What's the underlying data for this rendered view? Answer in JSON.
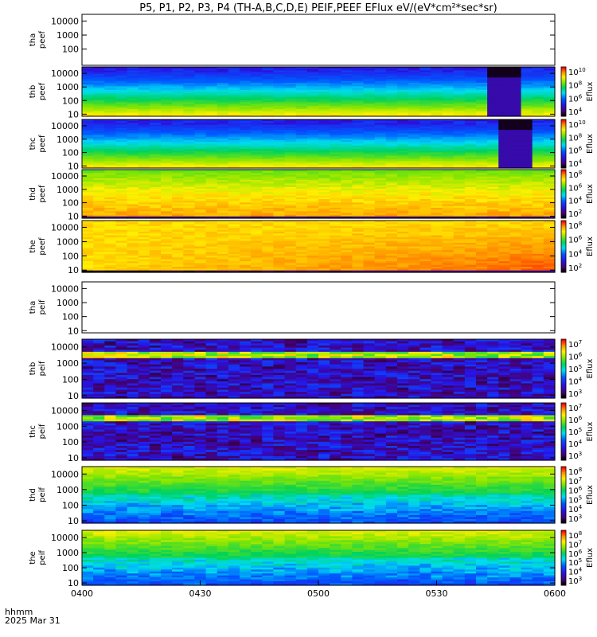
{
  "title": "P5, P1, P2, P3, P4 (TH-A,B,C,D,E) PEIF,PEEF EFlux eV/(eV*cm²*sec*sr)",
  "x_axis": {
    "label_line1": "hhmm",
    "label_line2": "2025 Mar 31",
    "ticks": [
      "0400",
      "0430",
      "0500",
      "0530",
      "0600"
    ]
  },
  "colorbar_label": "Eflux",
  "chart_data": [
    {
      "type": "heatmap",
      "name": "tha peef",
      "ylabel": [
        "tha",
        "peef"
      ],
      "yscale": "log",
      "ylim": [
        7,
        30000
      ],
      "yticks": [
        "10000",
        "1000",
        "100"
      ],
      "data_present": false,
      "colorbar": null
    },
    {
      "type": "heatmap",
      "name": "thb peef",
      "ylabel": [
        "thb",
        "peef"
      ],
      "yscale": "log",
      "ylim": [
        7,
        30000
      ],
      "yticks": [
        "10000",
        "1000",
        "100",
        "10"
      ],
      "data_present": true,
      "pattern": "electron-quiet",
      "gap_start_min": 103,
      "gap_end_min": 110,
      "colorbar": {
        "ticks": [
          {
            "base": "10",
            "exp": "10"
          },
          {
            "base": "10",
            "exp": "8"
          },
          {
            "base": "10",
            "exp": "6"
          },
          {
            "base": "10",
            "exp": "4"
          }
        ]
      }
    },
    {
      "type": "heatmap",
      "name": "thc peef",
      "ylabel": [
        "thc",
        "peef"
      ],
      "yscale": "log",
      "ylim": [
        7,
        30000
      ],
      "yticks": [
        "10000",
        "1000",
        "100",
        "10"
      ],
      "data_present": true,
      "pattern": "electron-quiet",
      "gap_start_min": 107,
      "gap_end_min": 114,
      "colorbar": {
        "ticks": [
          {
            "base": "10",
            "exp": "10"
          },
          {
            "base": "10",
            "exp": "8"
          },
          {
            "base": "10",
            "exp": "6"
          },
          {
            "base": "10",
            "exp": "4"
          }
        ]
      }
    },
    {
      "type": "heatmap",
      "name": "thd peef",
      "ylabel": [
        "thd",
        "peef"
      ],
      "yscale": "log",
      "ylim": [
        7,
        30000
      ],
      "yticks": [
        "10000",
        "1000",
        "100",
        "10"
      ],
      "data_present": true,
      "pattern": "electron-hot",
      "colorbar": {
        "ticks": [
          {
            "base": "10",
            "exp": "8"
          },
          {
            "base": "10",
            "exp": "6"
          },
          {
            "base": "10",
            "exp": "4"
          },
          {
            "base": "10",
            "exp": "2"
          }
        ]
      }
    },
    {
      "type": "heatmap",
      "name": "the peef",
      "ylabel": [
        "the",
        "peef"
      ],
      "yscale": "log",
      "ylim": [
        7,
        30000
      ],
      "yticks": [
        "10000",
        "1000",
        "100",
        "10"
      ],
      "data_present": true,
      "pattern": "electron-hotter",
      "colorbar": {
        "ticks": [
          {
            "base": "10",
            "exp": "8"
          },
          {
            "base": "10",
            "exp": "6"
          },
          {
            "base": "10",
            "exp": "4"
          },
          {
            "base": "10",
            "exp": "2"
          }
        ]
      }
    },
    {
      "type": "heatmap",
      "name": "tha peif",
      "ylabel": [
        "tha",
        "peif"
      ],
      "yscale": "log",
      "ylim": [
        7,
        30000
      ],
      "yticks": [
        "10000",
        "1000",
        "100",
        "10"
      ],
      "data_present": false,
      "colorbar": null
    },
    {
      "type": "heatmap",
      "name": "thb peif",
      "ylabel": [
        "thb",
        "peif"
      ],
      "yscale": "log",
      "ylim": [
        7,
        30000
      ],
      "yticks": [
        "10000",
        "1000",
        "100",
        "10"
      ],
      "data_present": true,
      "pattern": "ion-weak",
      "colorbar": {
        "ticks": [
          {
            "base": "10",
            "exp": "7"
          },
          {
            "base": "10",
            "exp": "6"
          },
          {
            "base": "10",
            "exp": "5"
          },
          {
            "base": "10",
            "exp": "4"
          },
          {
            "base": "10",
            "exp": "3"
          }
        ]
      }
    },
    {
      "type": "heatmap",
      "name": "thc peif",
      "ylabel": [
        "thc",
        "peif"
      ],
      "yscale": "log",
      "ylim": [
        7,
        30000
      ],
      "yticks": [
        "10000",
        "1000",
        "100",
        "10"
      ],
      "data_present": true,
      "pattern": "ion-weak",
      "colorbar": {
        "ticks": [
          {
            "base": "10",
            "exp": "7"
          },
          {
            "base": "10",
            "exp": "6"
          },
          {
            "base": "10",
            "exp": "5"
          },
          {
            "base": "10",
            "exp": "4"
          },
          {
            "base": "10",
            "exp": "3"
          }
        ]
      }
    },
    {
      "type": "heatmap",
      "name": "thd peif",
      "ylabel": [
        "thd",
        "peif"
      ],
      "yscale": "log",
      "ylim": [
        7,
        30000
      ],
      "yticks": [
        "10000",
        "1000",
        "100",
        "10"
      ],
      "data_present": true,
      "pattern": "ion-plasmasheet",
      "colorbar": {
        "ticks": [
          {
            "base": "10",
            "exp": "8"
          },
          {
            "base": "10",
            "exp": "7"
          },
          {
            "base": "10",
            "exp": "6"
          },
          {
            "base": "10",
            "exp": "5"
          },
          {
            "base": "10",
            "exp": "4"
          },
          {
            "base": "10",
            "exp": "3"
          }
        ]
      }
    },
    {
      "type": "heatmap",
      "name": "the peif",
      "ylabel": [
        "the",
        "peif"
      ],
      "yscale": "log",
      "ylim": [
        7,
        30000
      ],
      "yticks": [
        "10000",
        "1000",
        "100",
        "10"
      ],
      "data_present": true,
      "pattern": "ion-plasmasheet",
      "colorbar": {
        "ticks": [
          {
            "base": "10",
            "exp": "8"
          },
          {
            "base": "10",
            "exp": "7"
          },
          {
            "base": "10",
            "exp": "6"
          },
          {
            "base": "10",
            "exp": "5"
          },
          {
            "base": "10",
            "exp": "4"
          },
          {
            "base": "10",
            "exp": "3"
          }
        ]
      }
    }
  ]
}
